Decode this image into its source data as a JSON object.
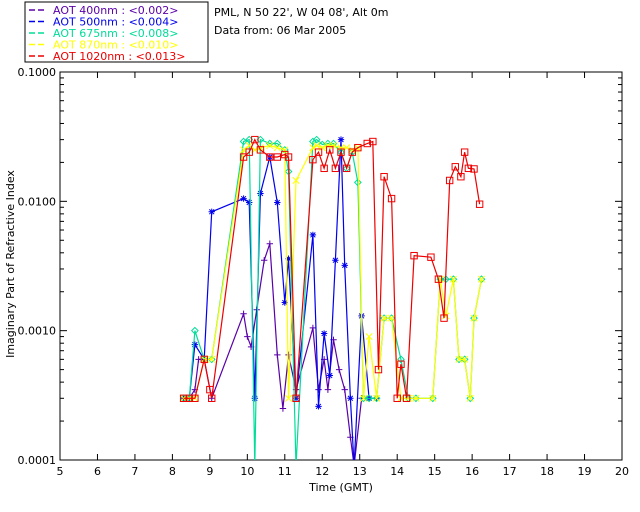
{
  "header": {
    "site": "PML, N 50 22', W 04 08', Alt 0m",
    "date": "Data from: 06 Mar 2005"
  },
  "chart_data": {
    "type": "line",
    "title": "",
    "xlabel": "Time (GMT)",
    "ylabel": "Imaginary Part of Refractive Index",
    "xlim": [
      5,
      20
    ],
    "ylim": [
      0.0001,
      0.1
    ],
    "yscale": "log",
    "xticks": [
      "5",
      "6",
      "7",
      "8",
      "9",
      "10",
      "11",
      "12",
      "13",
      "14",
      "15",
      "16",
      "17",
      "18",
      "19",
      "20"
    ],
    "yticks": [
      "0.0001",
      "0.0010",
      "0.0100",
      "0.1000"
    ],
    "legend_position": "top-left",
    "series": [
      {
        "name": "AOT  400nm : <0.002>",
        "color": "#5a00aa",
        "marker": "plus",
        "x": [
          8.3,
          8.45,
          8.6,
          8.7,
          8.85,
          9.05,
          9.9,
          10.0,
          10.1,
          10.25,
          10.45,
          10.6,
          10.8,
          10.95,
          11.1,
          11.3,
          11.75,
          11.9,
          12.05,
          12.15,
          12.3,
          12.45,
          12.6,
          12.75,
          12.85,
          13.05
        ],
        "y": [
          0.0003,
          0.0003,
          0.00035,
          0.0006,
          0.0006,
          0.0003,
          0.00135,
          0.0009,
          0.00075,
          0.00145,
          0.0035,
          0.0047,
          0.00065,
          0.00025,
          0.00065,
          0.00035,
          0.00105,
          0.00035,
          0.0006,
          0.00035,
          0.00085,
          0.0005,
          0.00035,
          0.00015,
          9e-05,
          0.0003
        ]
      },
      {
        "name": "AOT  500nm : <0.004>",
        "color": "#0000ee",
        "marker": "asterisk",
        "x": [
          8.3,
          8.45,
          8.6,
          8.85,
          9.05,
          9.9,
          10.05,
          10.2,
          10.35,
          10.6,
          10.8,
          11.0,
          11.1,
          11.3,
          11.75,
          11.9,
          12.05,
          12.2,
          12.35,
          12.5,
          12.6,
          12.75,
          12.85,
          13.05,
          13.25,
          13.45
        ],
        "y": [
          0.0003,
          0.0003,
          0.00078,
          0.0006,
          0.0083,
          0.0105,
          0.0098,
          0.0003,
          0.0115,
          0.022,
          0.0098,
          0.00165,
          0.0036,
          0.0003,
          0.0055,
          0.00026,
          0.00095,
          0.00045,
          0.0035,
          0.03,
          0.0032,
          0.0003,
          9e-05,
          0.0013,
          0.0003,
          0.0003
        ]
      },
      {
        "name": "AOT  675nm : <0.008>",
        "color": "#00dd99",
        "marker": "diamond",
        "x": [
          8.3,
          8.45,
          8.6,
          8.85,
          9.05,
          9.9,
          10.05,
          10.2,
          10.35,
          10.6,
          10.8,
          11.0,
          11.1,
          11.3,
          11.75,
          11.85,
          12.0,
          12.15,
          12.3,
          12.5,
          12.65,
          12.8,
          12.95,
          13.1,
          13.25,
          13.45,
          13.65,
          13.85,
          14.1,
          14.3,
          14.5,
          14.95,
          15.15,
          15.3,
          15.5,
          15.65,
          15.8,
          15.95,
          16.05,
          16.25
        ],
        "y": [
          0.0003,
          0.0003,
          0.001,
          0.0006,
          0.0006,
          0.029,
          0.03,
          9e-05,
          0.03,
          0.028,
          0.028,
          0.025,
          0.017,
          9e-05,
          0.029,
          0.03,
          0.0275,
          0.028,
          0.028,
          0.024,
          0.018,
          0.024,
          0.014,
          0.0003,
          0.0003,
          0.0003,
          0.00125,
          0.00125,
          0.0006,
          0.0003,
          0.0003,
          0.0003,
          0.0025,
          0.0025,
          0.0025,
          0.0006,
          0.0006,
          0.0003,
          0.00125,
          0.0025
        ]
      },
      {
        "name": "AOT  870nm : <0.010>",
        "color": "#ffff00",
        "marker": "cross",
        "x": [
          8.3,
          8.45,
          8.6,
          8.85,
          9.05,
          9.9,
          10.05,
          10.2,
          10.35,
          10.6,
          10.8,
          11.0,
          11.1,
          11.3,
          11.75,
          11.85,
          12.0,
          12.15,
          12.3,
          12.5,
          12.65,
          12.8,
          12.95,
          13.1,
          13.25,
          13.45,
          13.65,
          13.85,
          14.1,
          14.3,
          14.5,
          14.95,
          15.15,
          15.3,
          15.5,
          15.65,
          15.8,
          15.95,
          16.05,
          16.25
        ],
        "y": [
          0.0003,
          0.0003,
          0.0003,
          0.0006,
          0.0006,
          0.025,
          0.027,
          0.025,
          0.026,
          0.027,
          0.026,
          0.025,
          0.0003,
          0.0145,
          0.026,
          0.027,
          0.026,
          0.027,
          0.027,
          0.026,
          0.026,
          0.025,
          0.026,
          0.0003,
          0.0009,
          0.0003,
          0.00125,
          0.00125,
          0.0003,
          0.0003,
          0.0003,
          0.0003,
          0.0025,
          0.0013,
          0.0025,
          0.0006,
          0.0006,
          0.0003,
          0.00125,
          0.0025
        ]
      },
      {
        "name": "AOT 1020nm : <0.013>",
        "color": "#ee0000",
        "marker": "square",
        "x": [
          8.3,
          8.45,
          8.6,
          8.85,
          9.0,
          9.05,
          9.9,
          10.05,
          10.2,
          10.35,
          10.6,
          10.8,
          11.0,
          11.1,
          11.3,
          11.75,
          11.9,
          12.05,
          12.2,
          12.35,
          12.5,
          12.65,
          12.8,
          12.95,
          13.2,
          13.35,
          13.5,
          13.65,
          13.85,
          14.0,
          14.1,
          14.25,
          14.45,
          14.9,
          15.1,
          15.25,
          15.4,
          15.55,
          15.7,
          15.8,
          15.9,
          16.05,
          16.2
        ],
        "y": [
          0.0003,
          0.0003,
          0.0003,
          0.0006,
          0.00035,
          0.0003,
          0.022,
          0.024,
          0.03,
          0.025,
          0.022,
          0.022,
          0.023,
          0.022,
          0.0003,
          0.021,
          0.024,
          0.018,
          0.025,
          0.018,
          0.024,
          0.018,
          0.024,
          0.026,
          0.028,
          0.029,
          0.0005,
          0.0155,
          0.0105,
          0.0003,
          0.00055,
          0.0003,
          0.0038,
          0.0037,
          0.0025,
          0.00125,
          0.0145,
          0.0185,
          0.0155,
          0.024,
          0.018,
          0.0178,
          0.0095
        ]
      }
    ]
  }
}
